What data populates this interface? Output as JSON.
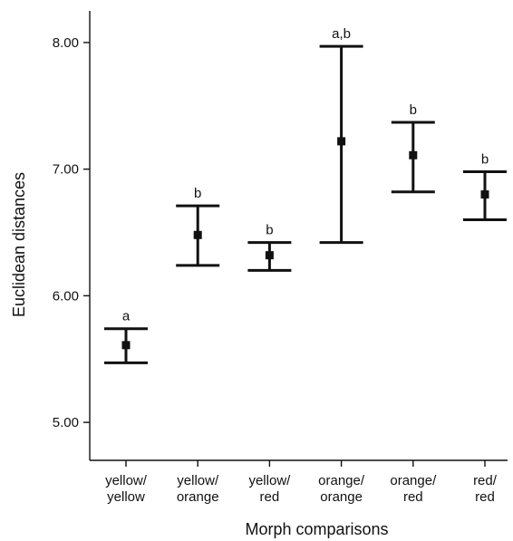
{
  "chart_data": {
    "type": "scatter",
    "subtype": "error-bar",
    "title": "",
    "xlabel": "Morph comparisons",
    "ylabel": "Euclidean distances",
    "ylim": [
      4.7,
      8.25
    ],
    "yticks": [
      "5.00",
      "6.00",
      "7.00",
      "8.00"
    ],
    "ytick_values": [
      5.0,
      6.0,
      7.0,
      8.0
    ],
    "categories": [
      [
        "yellow/",
        "yellow"
      ],
      [
        "yellow/",
        "orange"
      ],
      [
        "yellow/",
        "red"
      ],
      [
        "orange/",
        "orange"
      ],
      [
        "orange/",
        "red"
      ],
      [
        "red/",
        "red"
      ]
    ],
    "means": [
      5.61,
      6.48,
      6.32,
      7.22,
      7.11,
      6.8
    ],
    "lower": [
      5.47,
      6.24,
      6.2,
      6.42,
      6.82,
      6.6
    ],
    "upper": [
      5.74,
      6.71,
      6.42,
      7.97,
      7.37,
      6.98
    ],
    "labels": [
      "a",
      "b",
      "b",
      "a,b",
      "b",
      "b"
    ],
    "grid": false,
    "legend": "none",
    "color": "#111111"
  }
}
